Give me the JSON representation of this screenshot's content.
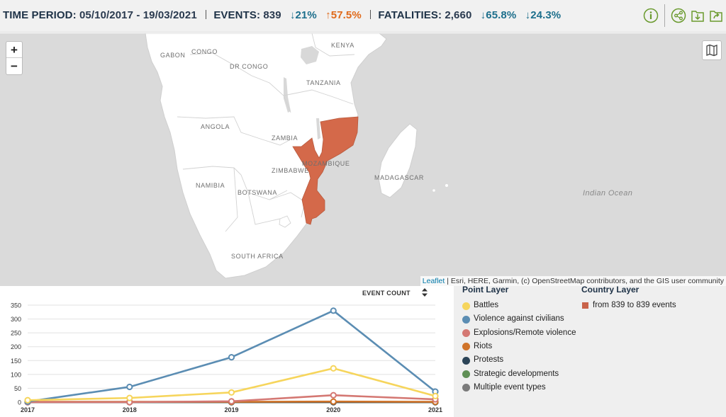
{
  "header": {
    "time_label": "TIME PERIOD:",
    "time_value": "05/10/2017 - 19/03/2021",
    "events_label": "EVENTS:",
    "events_value": "839",
    "events_change_1": "↓21%",
    "events_change_2": "↑57.5%",
    "fatalities_label": "FATALITIES:",
    "fatalities_value": "2,660",
    "fatalities_change_1": "↓65.8%",
    "fatalities_change_2": "↓24.3%",
    "icons": [
      "info-icon",
      "share-icon",
      "download-icon",
      "export-icon"
    ],
    "accent_color": "#6a9a2e"
  },
  "map": {
    "labels": {
      "gabon": "GABON",
      "congo": "CONGO",
      "dr_congo": "DR CONGO",
      "kenya": "KENYA",
      "tanzania": "TANZANIA",
      "angola": "ANGOLA",
      "zambia": "ZAMBIA",
      "zimbabwe": "ZIMBABWE",
      "mozambique": "MOZAMBIQUE",
      "namibia": "NAMIBIA",
      "botswana": "BOTSWANA",
      "madagascar": "MADAGASCAR",
      "south_africa": "SOUTH AFRICA",
      "ocean": "Indian Ocean"
    },
    "zoom_in": "+",
    "zoom_out": "−",
    "highlight_color": "#d4694a",
    "attribution_link": "Leaflet",
    "attribution_text": " | Esri, HERE, Garmin, (c) OpenStreetMap contributors, and the GIS user community"
  },
  "chart_header": {
    "metric_label": "EVENT COUNT"
  },
  "chart_data": {
    "type": "line",
    "x": [
      "2017",
      "2018",
      "2019",
      "2020",
      "2021"
    ],
    "ylim": [
      0,
      350
    ],
    "yticks": [
      0,
      50,
      100,
      150,
      200,
      250,
      300,
      350
    ],
    "grid": true,
    "series": [
      {
        "name": "Battles",
        "color": "#f6d55c",
        "values": [
          7,
          15,
          35,
          122,
          22
        ]
      },
      {
        "name": "Violence against civilians",
        "color": "#5b8db3",
        "values": [
          2,
          55,
          162,
          330,
          38
        ]
      },
      {
        "name": "Explosions/Remote violence",
        "color": "#d47873",
        "values": [
          0,
          0,
          3,
          25,
          10
        ]
      },
      {
        "name": "Riots",
        "color": "#d0742a",
        "values": [
          1,
          1,
          1,
          2,
          1
        ]
      },
      {
        "name": "Protests",
        "color": "#2c4457",
        "values": [
          0,
          0,
          0,
          0,
          0
        ]
      },
      {
        "name": "Strategic developments",
        "color": "#5f8f55",
        "values": [
          0,
          0,
          0,
          0,
          0
        ]
      },
      {
        "name": "Multiple event types",
        "color": "#7a7a7a",
        "values": [
          0,
          0,
          0,
          0,
          0
        ]
      }
    ]
  },
  "legend": {
    "point_title": "Point Layer",
    "country_title": "Country Layer",
    "country_item": "from 839 to 839 events",
    "country_color": "#c9634a"
  }
}
